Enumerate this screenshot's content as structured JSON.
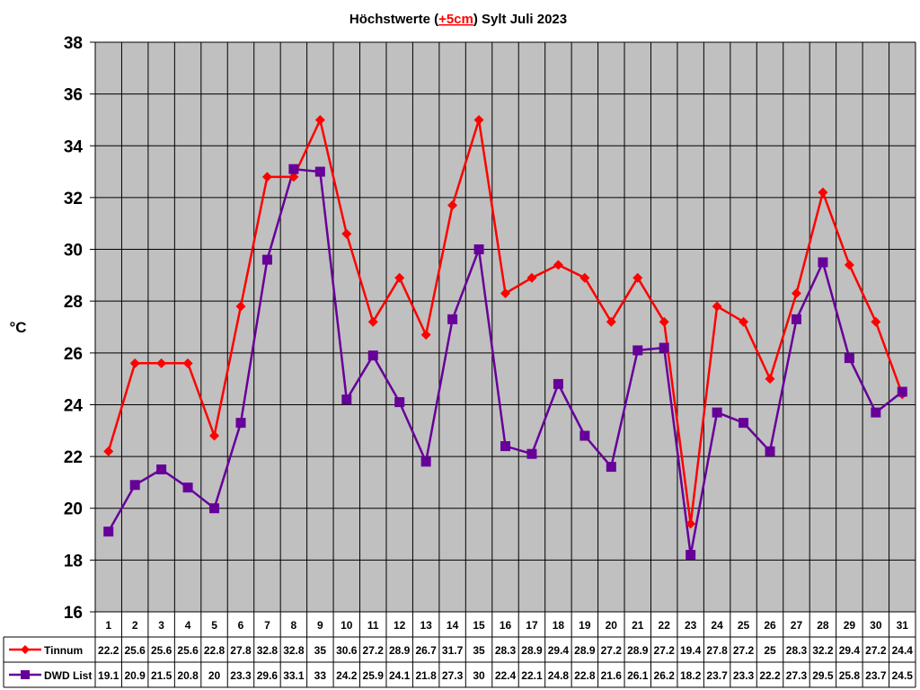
{
  "chart_data": {
    "type": "line",
    "title_parts": [
      "Höchstwerte (",
      "+5cm",
      ") Sylt Juli 2023"
    ],
    "title_highlight_color": "#ff0000",
    "ylabel": "°C",
    "ylim": [
      16,
      38
    ],
    "ytick_step": 2,
    "yticks": [
      "16",
      "18",
      "20",
      "22",
      "24",
      "26",
      "28",
      "30",
      "32",
      "34",
      "36",
      "38"
    ],
    "grid": true,
    "plot_background": "#c0c0c0",
    "categories": [
      "1",
      "2",
      "3",
      "4",
      "5",
      "6",
      "7",
      "8",
      "9",
      "10",
      "11",
      "12",
      "13",
      "14",
      "15",
      "16",
      "17",
      "18",
      "19",
      "20",
      "21",
      "22",
      "23",
      "24",
      "25",
      "26",
      "27",
      "28",
      "29",
      "30",
      "31"
    ],
    "series": [
      {
        "name": "Tinnum",
        "color": "#ff0000",
        "marker": "diamond",
        "values": [
          22.2,
          25.6,
          25.6,
          25.6,
          22.8,
          27.8,
          32.8,
          32.8,
          35,
          30.6,
          27.2,
          28.9,
          26.7,
          31.7,
          35,
          28.3,
          28.9,
          29.4,
          28.9,
          27.2,
          28.9,
          27.2,
          19.4,
          27.8,
          27.2,
          25,
          28.3,
          32.2,
          29.4,
          27.2,
          24.4
        ],
        "labels": [
          "22.2",
          "25.6",
          "25.6",
          "25.6",
          "22.8",
          "27.8",
          "32.8",
          "32.8",
          "35",
          "30.6",
          "27.2",
          "28.9",
          "26.7",
          "31.7",
          "35",
          "28.3",
          "28.9",
          "29.4",
          "28.9",
          "27.2",
          "28.9",
          "27.2",
          "19.4",
          "27.8",
          "27.2",
          "25",
          "28.3",
          "32.2",
          "29.4",
          "27.2",
          "24.4"
        ]
      },
      {
        "name": "DWD List",
        "color": "#660099",
        "marker": "square",
        "values": [
          19.1,
          20.9,
          21.5,
          20.8,
          20,
          23.3,
          29.6,
          33.1,
          33,
          24.2,
          25.9,
          24.1,
          21.8,
          27.3,
          30,
          22.4,
          22.1,
          24.8,
          22.8,
          21.6,
          26.1,
          26.2,
          18.2,
          23.7,
          23.3,
          22.2,
          27.3,
          29.5,
          25.8,
          23.7,
          24.5
        ],
        "labels": [
          "19.1",
          "20.9",
          "21.5",
          "20.8",
          "20",
          "23.3",
          "29.6",
          "33.1",
          "33",
          "24.2",
          "25.9",
          "24.1",
          "21.8",
          "27.3",
          "30",
          "22.4",
          "22.1",
          "24.8",
          "22.8",
          "21.6",
          "26.1",
          "26.2",
          "18.2",
          "23.7",
          "23.3",
          "22.2",
          "27.3",
          "29.5",
          "25.8",
          "23.7",
          "24.5"
        ]
      }
    ],
    "data_table": true
  }
}
